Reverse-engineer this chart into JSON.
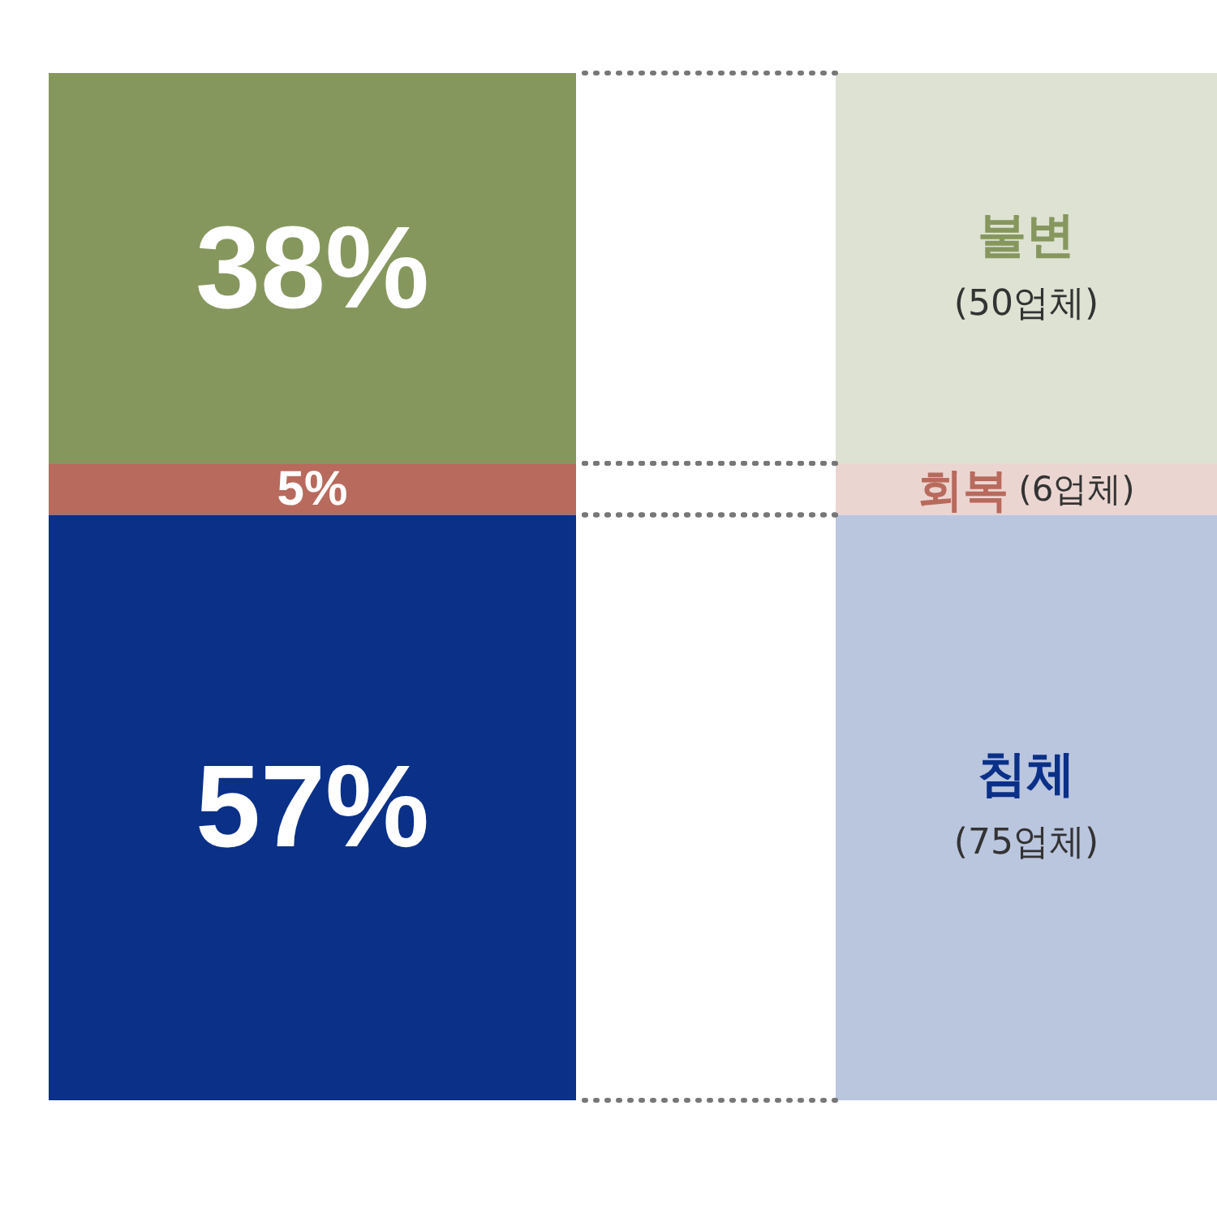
{
  "chart_data": {
    "type": "bar",
    "stacked": true,
    "categories": [
      null
    ],
    "legend": "right",
    "series": [
      {
        "name": "침체",
        "color": "#0a3088",
        "values": [
          57
        ],
        "value_labels": [
          "57%"
        ]
      },
      {
        "name": "회복",
        "color": "#b86a5c",
        "values": [
          5
        ],
        "value_labels": [
          "5%"
        ]
      },
      {
        "name": "불변",
        "color": "#86975e",
        "values": [
          38
        ],
        "value_labels": [
          "38%"
        ]
      }
    ],
    "annotations": [
      "(75업체)",
      "(6업체)",
      "(50업체)"
    ]
  }
}
